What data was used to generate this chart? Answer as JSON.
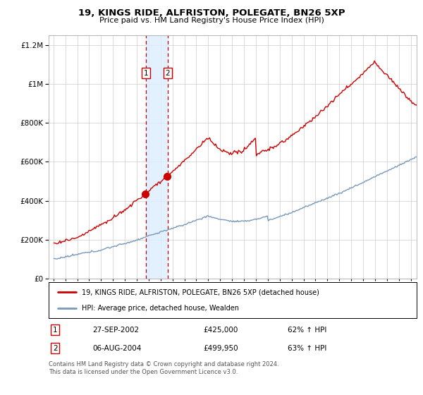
{
  "title": "19, KINGS RIDE, ALFRISTON, POLEGATE, BN26 5XP",
  "subtitle": "Price paid vs. HM Land Registry's House Price Index (HPI)",
  "red_label": "19, KINGS RIDE, ALFRISTON, POLEGATE, BN26 5XP (detached house)",
  "blue_label": "HPI: Average price, detached house, Wealden",
  "sale1_date": "27-SEP-2002",
  "sale1_price": 425000,
  "sale1_pct": "62%",
  "sale2_date": "06-AUG-2004",
  "sale2_price": 499950,
  "sale2_pct": "63%",
  "footnote": "Contains HM Land Registry data © Crown copyright and database right 2024.\nThis data is licensed under the Open Government Licence v3.0.",
  "red_color": "#cc0000",
  "blue_color": "#7799bb",
  "bg_color": "#ffffff",
  "grid_color": "#cccccc",
  "shade_color": "#ddeeff",
  "dashed_color": "#cc0000",
  "ylim_max": 1250000,
  "ylim_min": 0,
  "sale1_t": 2002.75,
  "sale2_t": 2004.583
}
